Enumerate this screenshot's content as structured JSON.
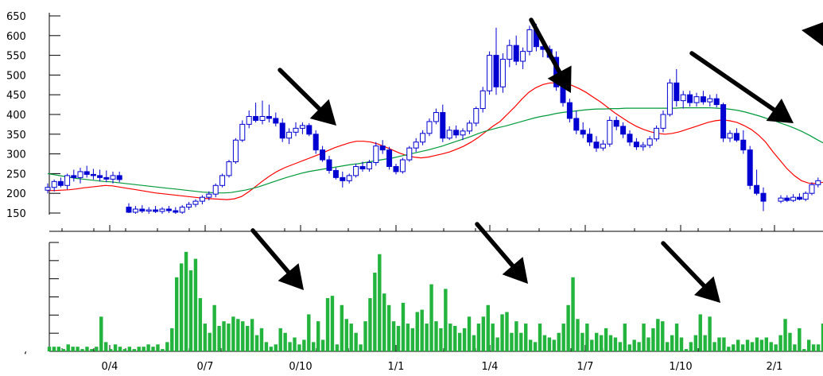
{
  "chart_data": {
    "type": "candlestick",
    "price_axis": {
      "ylim": [
        150,
        650
      ],
      "ticks": [
        150,
        200,
        250,
        300,
        350,
        400,
        450,
        500,
        550,
        600,
        650
      ]
    },
    "x_ticks": [
      "0/4",
      "0/7",
      "0/10",
      "1/1",
      "1/4",
      "1/7",
      "1/10",
      "2/1"
    ],
    "candles": [
      {
        "o": 208,
        "h": 225,
        "l": 200,
        "c": 215
      },
      {
        "o": 215,
        "h": 235,
        "l": 205,
        "c": 230
      },
      {
        "o": 230,
        "h": 240,
        "l": 215,
        "c": 220
      },
      {
        "o": 220,
        "h": 250,
        "l": 210,
        "c": 245
      },
      {
        "o": 245,
        "h": 260,
        "l": 230,
        "c": 240
      },
      {
        "o": 240,
        "h": 265,
        "l": 225,
        "c": 255
      },
      {
        "o": 255,
        "h": 270,
        "l": 240,
        "c": 248
      },
      {
        "o": 248,
        "h": 262,
        "l": 235,
        "c": 245
      },
      {
        "o": 245,
        "h": 260,
        "l": 230,
        "c": 240
      },
      {
        "o": 240,
        "h": 258,
        "l": 228,
        "c": 236
      },
      {
        "o": 236,
        "h": 255,
        "l": 225,
        "c": 245
      },
      {
        "o": 245,
        "h": 255,
        "l": 228,
        "c": 235
      },
      {
        "o": 165,
        "h": 175,
        "l": 150,
        "c": 152
      },
      {
        "o": 152,
        "h": 168,
        "l": 148,
        "c": 160
      },
      {
        "o": 160,
        "h": 170,
        "l": 150,
        "c": 155
      },
      {
        "o": 155,
        "h": 165,
        "l": 148,
        "c": 158
      },
      {
        "o": 158,
        "h": 168,
        "l": 150,
        "c": 154
      },
      {
        "o": 154,
        "h": 165,
        "l": 148,
        "c": 160
      },
      {
        "o": 160,
        "h": 168,
        "l": 150,
        "c": 156
      },
      {
        "o": 156,
        "h": 165,
        "l": 148,
        "c": 152
      },
      {
        "o": 152,
        "h": 170,
        "l": 148,
        "c": 165
      },
      {
        "o": 165,
        "h": 178,
        "l": 158,
        "c": 172
      },
      {
        "o": 172,
        "h": 185,
        "l": 165,
        "c": 180
      },
      {
        "o": 180,
        "h": 195,
        "l": 172,
        "c": 190
      },
      {
        "o": 190,
        "h": 205,
        "l": 182,
        "c": 198
      },
      {
        "o": 198,
        "h": 225,
        "l": 190,
        "c": 220
      },
      {
        "o": 220,
        "h": 250,
        "l": 215,
        "c": 245
      },
      {
        "o": 245,
        "h": 285,
        "l": 240,
        "c": 280
      },
      {
        "o": 280,
        "h": 340,
        "l": 275,
        "c": 335
      },
      {
        "o": 335,
        "h": 385,
        "l": 330,
        "c": 375
      },
      {
        "o": 375,
        "h": 410,
        "l": 365,
        "c": 395
      },
      {
        "o": 395,
        "h": 430,
        "l": 380,
        "c": 385
      },
      {
        "o": 385,
        "h": 435,
        "l": 375,
        "c": 395
      },
      {
        "o": 395,
        "h": 425,
        "l": 380,
        "c": 390
      },
      {
        "o": 390,
        "h": 405,
        "l": 370,
        "c": 378
      },
      {
        "o": 378,
        "h": 390,
        "l": 330,
        "c": 340
      },
      {
        "o": 340,
        "h": 365,
        "l": 325,
        "c": 355
      },
      {
        "o": 355,
        "h": 380,
        "l": 345,
        "c": 365
      },
      {
        "o": 365,
        "h": 380,
        "l": 350,
        "c": 372
      },
      {
        "o": 372,
        "h": 378,
        "l": 345,
        "c": 350
      },
      {
        "o": 350,
        "h": 360,
        "l": 300,
        "c": 310
      },
      {
        "o": 310,
        "h": 320,
        "l": 280,
        "c": 285
      },
      {
        "o": 285,
        "h": 295,
        "l": 250,
        "c": 258
      },
      {
        "o": 258,
        "h": 265,
        "l": 235,
        "c": 240
      },
      {
        "o": 240,
        "h": 255,
        "l": 215,
        "c": 232
      },
      {
        "o": 232,
        "h": 250,
        "l": 225,
        "c": 245
      },
      {
        "o": 245,
        "h": 275,
        "l": 240,
        "c": 268
      },
      {
        "o": 268,
        "h": 280,
        "l": 255,
        "c": 262
      },
      {
        "o": 262,
        "h": 285,
        "l": 255,
        "c": 278
      },
      {
        "o": 278,
        "h": 330,
        "l": 270,
        "c": 320
      },
      {
        "o": 320,
        "h": 335,
        "l": 300,
        "c": 310
      },
      {
        "o": 310,
        "h": 318,
        "l": 260,
        "c": 268
      },
      {
        "o": 268,
        "h": 275,
        "l": 248,
        "c": 255
      },
      {
        "o": 255,
        "h": 290,
        "l": 250,
        "c": 285
      },
      {
        "o": 285,
        "h": 320,
        "l": 280,
        "c": 315
      },
      {
        "o": 315,
        "h": 340,
        "l": 305,
        "c": 330
      },
      {
        "o": 330,
        "h": 360,
        "l": 322,
        "c": 352
      },
      {
        "o": 352,
        "h": 390,
        "l": 345,
        "c": 382
      },
      {
        "o": 382,
        "h": 415,
        "l": 375,
        "c": 405
      },
      {
        "o": 405,
        "h": 425,
        "l": 330,
        "c": 340
      },
      {
        "o": 340,
        "h": 370,
        "l": 335,
        "c": 360
      },
      {
        "o": 360,
        "h": 372,
        "l": 340,
        "c": 348
      },
      {
        "o": 348,
        "h": 365,
        "l": 335,
        "c": 358
      },
      {
        "o": 358,
        "h": 385,
        "l": 350,
        "c": 378
      },
      {
        "o": 378,
        "h": 420,
        "l": 370,
        "c": 415
      },
      {
        "o": 415,
        "h": 470,
        "l": 405,
        "c": 460
      },
      {
        "o": 460,
        "h": 560,
        "l": 450,
        "c": 550
      },
      {
        "o": 550,
        "h": 620,
        "l": 450,
        "c": 470
      },
      {
        "o": 470,
        "h": 555,
        "l": 455,
        "c": 540
      },
      {
        "o": 540,
        "h": 590,
        "l": 520,
        "c": 575
      },
      {
        "o": 575,
        "h": 600,
        "l": 525,
        "c": 535
      },
      {
        "o": 535,
        "h": 570,
        "l": 515,
        "c": 560
      },
      {
        "o": 560,
        "h": 625,
        "l": 550,
        "c": 615
      },
      {
        "o": 615,
        "h": 630,
        "l": 560,
        "c": 572
      },
      {
        "o": 572,
        "h": 585,
        "l": 545,
        "c": 565
      },
      {
        "o": 565,
        "h": 575,
        "l": 540,
        "c": 545
      },
      {
        "o": 545,
        "h": 560,
        "l": 460,
        "c": 470
      },
      {
        "o": 470,
        "h": 480,
        "l": 420,
        "c": 430
      },
      {
        "o": 430,
        "h": 440,
        "l": 380,
        "c": 390
      },
      {
        "o": 390,
        "h": 410,
        "l": 350,
        "c": 360
      },
      {
        "o": 360,
        "h": 380,
        "l": 340,
        "c": 350
      },
      {
        "o": 350,
        "h": 365,
        "l": 320,
        "c": 330
      },
      {
        "o": 330,
        "h": 345,
        "l": 305,
        "c": 315
      },
      {
        "o": 315,
        "h": 335,
        "l": 308,
        "c": 325
      },
      {
        "o": 325,
        "h": 395,
        "l": 318,
        "c": 385
      },
      {
        "o": 385,
        "h": 395,
        "l": 360,
        "c": 370
      },
      {
        "o": 370,
        "h": 380,
        "l": 340,
        "c": 350
      },
      {
        "o": 350,
        "h": 360,
        "l": 320,
        "c": 330
      },
      {
        "o": 330,
        "h": 340,
        "l": 310,
        "c": 318
      },
      {
        "o": 318,
        "h": 330,
        "l": 308,
        "c": 322
      },
      {
        "o": 322,
        "h": 345,
        "l": 315,
        "c": 338
      },
      {
        "o": 338,
        "h": 372,
        "l": 332,
        "c": 365
      },
      {
        "o": 365,
        "h": 410,
        "l": 355,
        "c": 400
      },
      {
        "o": 400,
        "h": 490,
        "l": 395,
        "c": 480
      },
      {
        "o": 480,
        "h": 515,
        "l": 420,
        "c": 435
      },
      {
        "o": 435,
        "h": 460,
        "l": 415,
        "c": 450
      },
      {
        "o": 450,
        "h": 460,
        "l": 420,
        "c": 430
      },
      {
        "o": 430,
        "h": 455,
        "l": 420,
        "c": 445
      },
      {
        "o": 445,
        "h": 460,
        "l": 425,
        "c": 432
      },
      {
        "o": 432,
        "h": 450,
        "l": 420,
        "c": 440
      },
      {
        "o": 440,
        "h": 452,
        "l": 418,
        "c": 425
      },
      {
        "o": 425,
        "h": 430,
        "l": 330,
        "c": 340
      },
      {
        "o": 340,
        "h": 360,
        "l": 330,
        "c": 352
      },
      {
        "o": 352,
        "h": 365,
        "l": 330,
        "c": 335
      },
      {
        "o": 335,
        "h": 360,
        "l": 300,
        "c": 310
      },
      {
        "o": 310,
        "h": 320,
        "l": 210,
        "c": 220
      },
      {
        "o": 220,
        "h": 260,
        "l": 195,
        "c": 200
      },
      {
        "o": 200,
        "h": 215,
        "l": 155,
        "c": 180
      },
      {
        "o": 180,
        "h": 195,
        "l": 175,
        "c": 188
      },
      {
        "o": 188,
        "h": 195,
        "l": 178,
        "c": 182
      },
      {
        "o": 182,
        "h": 198,
        "l": 178,
        "c": 190
      },
      {
        "o": 190,
        "h": 200,
        "l": 182,
        "c": 185
      },
      {
        "o": 185,
        "h": 205,
        "l": 180,
        "c": 200
      },
      {
        "o": 200,
        "h": 228,
        "l": 195,
        "c": 222
      },
      {
        "o": 222,
        "h": 240,
        "l": 215,
        "c": 232
      }
    ],
    "volume": [
      2,
      2,
      2,
      1,
      3,
      2,
      2,
      1,
      2,
      1,
      2,
      15,
      4,
      1,
      3,
      2,
      1,
      2,
      1,
      2,
      2,
      3,
      2,
      3,
      1,
      4,
      10,
      32,
      38,
      43,
      35,
      40,
      23,
      12,
      8,
      20,
      11,
      13,
      12,
      15,
      14,
      13,
      11,
      14,
      7,
      10,
      4,
      2,
      3,
      10,
      8,
      4,
      6,
      3,
      5,
      16,
      4,
      13,
      5,
      23,
      24,
      3,
      20,
      14,
      12,
      8,
      3,
      13,
      23,
      34,
      42,
      25,
      20,
      13,
      11,
      21,
      12,
      10,
      17,
      18,
      12,
      29,
      13,
      10,
      27,
      12,
      11,
      8,
      10,
      15,
      7,
      12,
      15,
      20,
      12,
      6,
      16,
      17,
      8,
      13,
      8,
      12,
      5,
      4,
      12,
      7,
      6,
      5,
      8,
      12,
      20,
      32,
      14,
      8,
      12,
      5,
      8,
      7,
      10,
      7,
      6,
      4,
      12,
      3,
      5,
      4,
      12,
      6,
      10,
      14,
      13,
      4,
      7,
      12,
      6,
      1,
      4,
      7,
      16,
      7,
      15,
      4,
      6,
      6,
      2,
      3,
      5,
      3,
      5,
      4,
      6,
      5,
      6,
      4,
      3,
      7,
      14,
      8,
      3,
      10,
      1,
      5,
      3,
      3,
      12
    ],
    "moving_averages": [
      {
        "color": "#ff0000",
        "values": [
          207,
          207,
          208,
          209,
          211,
          214,
          216,
          218,
          220,
          219,
          216,
          213,
          210,
          207,
          204,
          201,
          199,
          197,
          195,
          193,
          191,
          189,
          187,
          186,
          185,
          184,
          186,
          192,
          204,
          218,
          232,
          245,
          256,
          265,
          272,
          279,
          286,
          293,
          300,
          308,
          316,
          322,
          328,
          332,
          332,
          330,
          325,
          318,
          310,
          302,
          296,
          292,
          290,
          292,
          296,
          300,
          305,
          312,
          320,
          330,
          342,
          356,
          370,
          382,
          400,
          418,
          438,
          456,
          468,
          476,
          480,
          480,
          478,
          474,
          466,
          456,
          444,
          432,
          418,
          404,
          392,
          380,
          370,
          362,
          356,
          352,
          350,
          352,
          356,
          362,
          368,
          374,
          380,
          384,
          386,
          384,
          380,
          372,
          362,
          348,
          330,
          306,
          284,
          262,
          245,
          232,
          226,
          225,
          228
        ]
      },
      {
        "color": "#009a3a",
        "values": [
          250,
          247,
          244,
          241,
          238,
          236,
          234,
          232,
          230,
          229,
          227,
          225,
          223,
          221,
          219,
          217,
          215,
          213,
          211,
          209,
          207,
          205,
          203,
          202,
          201,
          201,
          202,
          205,
          208,
          212,
          217,
          223,
          229,
          235,
          241,
          246,
          251,
          255,
          258,
          261,
          264,
          267,
          270,
          273,
          275,
          278,
          281,
          284,
          287,
          290,
          294,
          298,
          302,
          306,
          310,
          315,
          320,
          326,
          332,
          338,
          344,
          351,
          357,
          362,
          367,
          371,
          376,
          381,
          386,
          391,
          395,
          398,
          402,
          405,
          407,
          409,
          411,
          413,
          414,
          414,
          415,
          415,
          416,
          416,
          416,
          416,
          416,
          416,
          416,
          416,
          417,
          417,
          417,
          417,
          417,
          416,
          415,
          413,
          410,
          406,
          401,
          396,
          390,
          385,
          378,
          372,
          365,
          357,
          348,
          338,
          328
        ]
      }
    ],
    "annotations": [
      "arrow",
      "arrow",
      "arrow",
      "arrow",
      "arrow",
      "arrow",
      "arrow"
    ],
    "colors": {
      "candle_body": "#0000d2",
      "volume_bar": "#22b43c"
    }
  }
}
